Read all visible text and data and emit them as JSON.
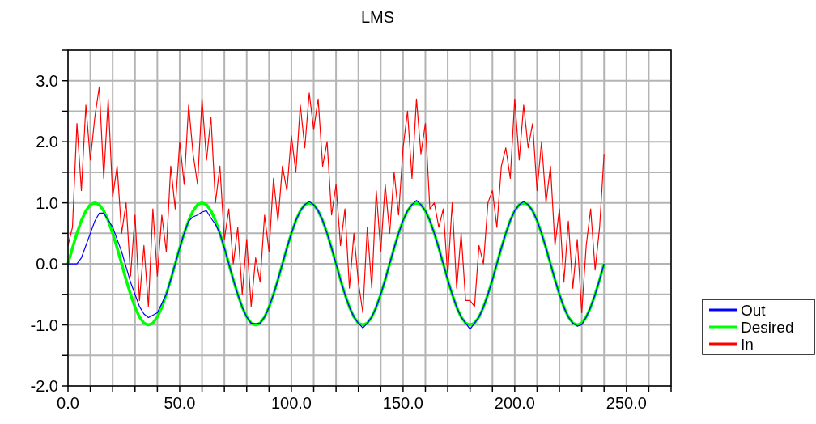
{
  "chart_data": {
    "type": "line",
    "title": "LMS",
    "xlim": [
      0,
      270
    ],
    "xticks": [
      {
        "value": 0,
        "label": "0.0"
      },
      {
        "value": 10,
        "label": null
      },
      {
        "value": 20,
        "label": null
      },
      {
        "value": 30,
        "label": null
      },
      {
        "value": 40,
        "label": null
      },
      {
        "value": 50,
        "label": "50.0"
      },
      {
        "value": 60,
        "label": null
      },
      {
        "value": 70,
        "label": null
      },
      {
        "value": 80,
        "label": null
      },
      {
        "value": 90,
        "label": null
      },
      {
        "value": 100,
        "label": "100.0"
      },
      {
        "value": 110,
        "label": null
      },
      {
        "value": 120,
        "label": null
      },
      {
        "value": 130,
        "label": null
      },
      {
        "value": 140,
        "label": null
      },
      {
        "value": 150,
        "label": "150.0"
      },
      {
        "value": 160,
        "label": null
      },
      {
        "value": 170,
        "label": null
      },
      {
        "value": 180,
        "label": null
      },
      {
        "value": 190,
        "label": null
      },
      {
        "value": 200,
        "label": "200.0"
      },
      {
        "value": 210,
        "label": null
      },
      {
        "value": 220,
        "label": null
      },
      {
        "value": 230,
        "label": null
      },
      {
        "value": 240,
        "label": null
      },
      {
        "value": 250,
        "label": "250.0"
      },
      {
        "value": 260,
        "label": null
      },
      {
        "value": 270,
        "label": null
      }
    ],
    "ylim": [
      -2,
      3.5
    ],
    "yticks": [
      {
        "value": -2,
        "label": "-2.0"
      },
      {
        "value": -1.5,
        "label": null
      },
      {
        "value": -1,
        "label": "-1.0"
      },
      {
        "value": -0.5,
        "label": null
      },
      {
        "value": 0,
        "label": "0.0"
      },
      {
        "value": 0.5,
        "label": null
      },
      {
        "value": 1,
        "label": "1.0"
      },
      {
        "value": 1.5,
        "label": null
      },
      {
        "value": 2,
        "label": "2.0"
      },
      {
        "value": 2.5,
        "label": null
      },
      {
        "value": 3,
        "label": "3.0"
      },
      {
        "value": 3.5,
        "label": null
      }
    ],
    "grid": true,
    "legend": "right",
    "marker": "none",
    "line_style": "solid",
    "x": [
      0,
      2,
      4,
      6,
      8,
      10,
      12,
      14,
      16,
      18,
      20,
      22,
      24,
      26,
      28,
      30,
      32,
      34,
      36,
      38,
      40,
      42,
      44,
      46,
      48,
      50,
      52,
      54,
      56,
      58,
      60,
      62,
      64,
      66,
      68,
      70,
      72,
      74,
      76,
      78,
      80,
      82,
      84,
      86,
      88,
      90,
      92,
      94,
      96,
      98,
      100,
      102,
      104,
      106,
      108,
      110,
      112,
      114,
      116,
      118,
      120,
      122,
      124,
      126,
      128,
      130,
      132,
      134,
      136,
      138,
      140,
      142,
      144,
      146,
      148,
      150,
      152,
      154,
      156,
      158,
      160,
      162,
      164,
      166,
      168,
      170,
      172,
      174,
      176,
      178,
      180,
      182,
      184,
      186,
      188,
      190,
      192,
      194,
      196,
      198,
      200,
      202,
      204,
      206,
      208,
      210,
      212,
      214,
      216,
      218,
      220,
      222,
      224,
      226,
      228,
      230,
      232,
      234,
      236,
      238,
      240
    ],
    "series": [
      {
        "name": "Out",
        "color": "#0000ff",
        "values": [
          0,
          0,
          0,
          0.1,
          0.3,
          0.5,
          0.7,
          0.83,
          0.83,
          0.72,
          0.6,
          0.4,
          0.2,
          -0.05,
          -0.3,
          -0.5,
          -0.7,
          -0.82,
          -0.88,
          -0.84,
          -0.8,
          -0.65,
          -0.5,
          -0.26,
          0,
          0.26,
          0.5,
          0.7,
          0.77,
          0.8,
          0.85,
          0.87,
          0.75,
          0.65,
          0.5,
          0.26,
          0,
          -0.26,
          -0.5,
          -0.71,
          -0.87,
          -0.97,
          -0.98,
          -0.97,
          -0.87,
          -0.71,
          -0.5,
          -0.26,
          0,
          0.26,
          0.5,
          0.71,
          0.87,
          0.97,
          1.02,
          0.97,
          0.87,
          0.71,
          0.5,
          0.26,
          0,
          -0.26,
          -0.5,
          -0.71,
          -0.87,
          -0.97,
          -1.05,
          -0.97,
          -0.87,
          -0.71,
          -0.5,
          -0.26,
          0,
          0.26,
          0.5,
          0.71,
          0.87,
          0.97,
          1.04,
          0.97,
          0.87,
          0.71,
          0.5,
          0.26,
          0,
          -0.26,
          -0.5,
          -0.71,
          -0.87,
          -0.97,
          -1.07,
          -0.97,
          -0.87,
          -0.71,
          -0.5,
          -0.26,
          0,
          0.26,
          0.5,
          0.71,
          0.87,
          0.97,
          1.02,
          0.97,
          0.87,
          0.71,
          0.5,
          0.26,
          0,
          -0.26,
          -0.5,
          -0.71,
          -0.87,
          -0.97,
          -1.02,
          -1.0,
          -0.87,
          -0.71,
          -0.5,
          -0.26,
          0
        ]
      },
      {
        "name": "Desired",
        "color": "#00ff00",
        "values": [
          0,
          0.26,
          0.5,
          0.71,
          0.87,
          0.97,
          1,
          0.97,
          0.87,
          0.71,
          0.5,
          0.26,
          0,
          -0.26,
          -0.5,
          -0.71,
          -0.87,
          -0.97,
          -1,
          -0.97,
          -0.87,
          -0.71,
          -0.5,
          -0.26,
          0,
          0.26,
          0.5,
          0.71,
          0.87,
          0.97,
          1,
          0.97,
          0.87,
          0.71,
          0.5,
          0.26,
          0,
          -0.26,
          -0.5,
          -0.71,
          -0.87,
          -0.97,
          -1,
          -0.97,
          -0.87,
          -0.71,
          -0.5,
          -0.26,
          0,
          0.26,
          0.5,
          0.71,
          0.87,
          0.97,
          1,
          0.97,
          0.87,
          0.71,
          0.5,
          0.26,
          0,
          -0.26,
          -0.5,
          -0.71,
          -0.87,
          -0.97,
          -1,
          -0.97,
          -0.87,
          -0.71,
          -0.5,
          -0.26,
          0,
          0.26,
          0.5,
          0.71,
          0.87,
          0.97,
          1,
          0.97,
          0.87,
          0.71,
          0.5,
          0.26,
          0,
          -0.26,
          -0.5,
          -0.71,
          -0.87,
          -0.97,
          -1,
          -0.97,
          -0.87,
          -0.71,
          -0.5,
          -0.26,
          0,
          0.26,
          0.5,
          0.71,
          0.87,
          0.97,
          1,
          0.97,
          0.87,
          0.71,
          0.5,
          0.26,
          0,
          -0.26,
          -0.5,
          -0.71,
          -0.87,
          -0.97,
          -1,
          -0.97,
          -0.87,
          -0.71,
          -0.5,
          -0.26,
          0
        ]
      },
      {
        "name": "In",
        "color": "#ff0000",
        "values": [
          0.3,
          0.6,
          2.3,
          1.2,
          2.6,
          1.7,
          2.4,
          2.9,
          1.4,
          2.7,
          1.1,
          1.6,
          0.5,
          1.0,
          -0.2,
          0.8,
          -0.6,
          0.3,
          -0.7,
          0.9,
          -0.2,
          0.8,
          0.2,
          1.6,
          0.9,
          2.0,
          1.3,
          2.6,
          1.8,
          1.3,
          2.7,
          1.7,
          2.4,
          1.0,
          1.6,
          0.4,
          0.9,
          0.0,
          0.6,
          -0.5,
          0.4,
          -0.7,
          0.1,
          -0.3,
          0.8,
          0.2,
          1.4,
          0.7,
          1.6,
          1.2,
          2.1,
          1.5,
          2.6,
          1.9,
          2.8,
          2.2,
          2.7,
          1.6,
          2.0,
          0.8,
          1.3,
          0.3,
          0.9,
          -0.4,
          0.5,
          -0.3,
          -0.8,
          0.6,
          -0.4,
          1.2,
          0.2,
          1.3,
          0.5,
          1.5,
          0.8,
          1.9,
          2.5,
          1.4,
          2.7,
          1.8,
          2.3,
          0.9,
          1.0,
          0.6,
          0.9,
          -0.2,
          1.0,
          -0.4,
          0.5,
          -0.6,
          -0.6,
          -0.7,
          0.3,
          0.0,
          1.0,
          1.2,
          0.6,
          1.6,
          1.9,
          1.4,
          2.7,
          1.7,
          2.6,
          1.9,
          2.3,
          1.2,
          2.0,
          1.0,
          1.6,
          0.3,
          0.9,
          -0.3,
          0.7,
          -0.4,
          0.4,
          -0.8,
          0.3,
          0.9,
          -0.1,
          0.6,
          1.8
        ]
      }
    ]
  }
}
